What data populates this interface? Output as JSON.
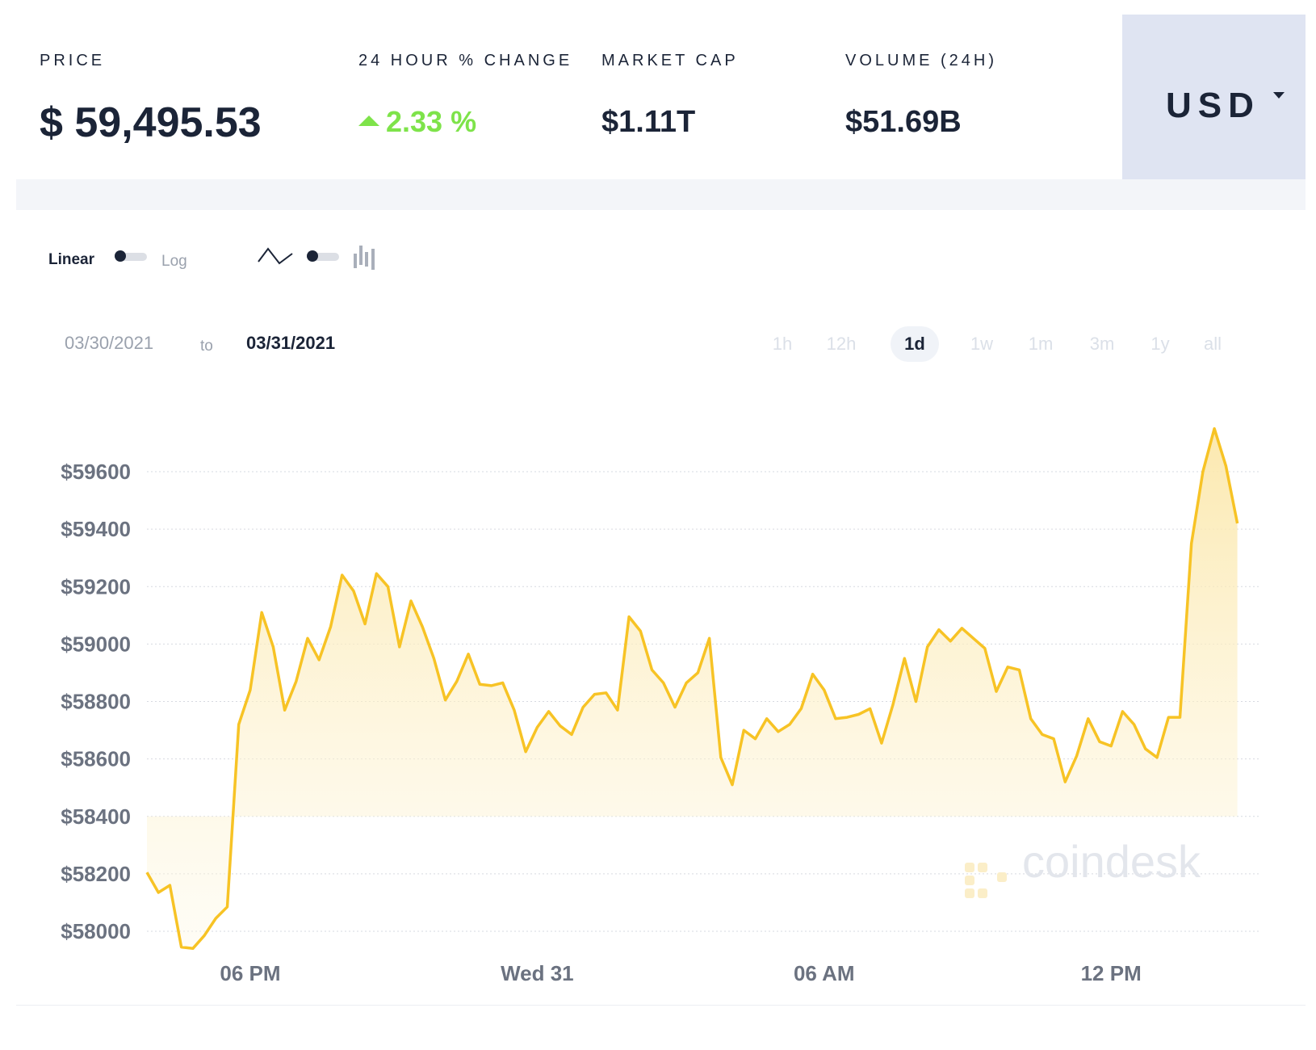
{
  "stats": {
    "price": {
      "label": "PRICE",
      "value": "$ 59,495.53"
    },
    "change": {
      "label": "24 HOUR % CHANGE",
      "value": "2.33 %"
    },
    "market_cap": {
      "label": "MARKET CAP",
      "value": "$1.11T"
    },
    "volume": {
      "label": "VOLUME (24H)",
      "value": "$51.69B"
    }
  },
  "currency": {
    "code": "USD"
  },
  "toolbar": {
    "linear": "Linear",
    "log": "Log"
  },
  "date_range": {
    "from": "03/30/2021",
    "to_label": "to",
    "to": "03/31/2021"
  },
  "ranges": [
    {
      "label": "1h",
      "active": false
    },
    {
      "label": "12h",
      "active": false
    },
    {
      "label": "1d",
      "active": true
    },
    {
      "label": "1w",
      "active": false
    },
    {
      "label": "1m",
      "active": false
    },
    {
      "label": "3m",
      "active": false
    },
    {
      "label": "1y",
      "active": false
    },
    {
      "label": "all",
      "active": false
    }
  ],
  "watermark": "coindesk",
  "colors": {
    "line": "#f7c325",
    "up": "#7ee34a",
    "text": "#1b2437",
    "muted": "#9aa1ad"
  },
  "chart_data": {
    "type": "area",
    "ylim": [
      57950,
      59800
    ],
    "yticks": [
      58000,
      58200,
      58400,
      58600,
      58800,
      59000,
      59200,
      59400,
      59600
    ],
    "ytick_labels": [
      "$58000",
      "$58200",
      "$58400",
      "$58600",
      "$58800",
      "$59000",
      "$59200",
      "$59400",
      "$59600"
    ],
    "xlim": [
      0,
      97
    ],
    "xticks": [
      9,
      34,
      59,
      84
    ],
    "xtick_labels": [
      "06 PM",
      "Wed 31",
      "06 AM",
      "12 PM"
    ],
    "grid": true,
    "series": [
      {
        "values": [
          58205,
          58135,
          58160,
          57945,
          57940,
          57985,
          58045,
          58085,
          58720,
          58840,
          59110,
          58990,
          58770,
          58870,
          59020,
          58945,
          59060,
          59240,
          59185,
          59070,
          59245,
          59200,
          58990,
          59150,
          59060,
          58950,
          58805,
          58870,
          58965,
          58860,
          58855,
          58865,
          58770,
          58625,
          58710,
          58765,
          58715,
          58685,
          58780,
          58825,
          58830,
          58770,
          59095,
          59045,
          58910,
          58865,
          58780,
          58865,
          58900,
          59020,
          58605,
          58510,
          58700,
          58670,
          58740,
          58695,
          58720,
          58775,
          58895,
          58840,
          58740,
          58745,
          58755,
          58775,
          58655,
          58790,
          58950,
          58800,
          58990,
          59050,
          59010,
          59055,
          59020,
          58985,
          58835,
          58920,
          58910,
          58740,
          58685,
          58670,
          58520,
          58610,
          58740,
          58660,
          58645,
          58765,
          58720,
          58635,
          58605,
          58745,
          58745,
          59350,
          59600,
          59750,
          59620,
          59420
        ]
      }
    ]
  }
}
